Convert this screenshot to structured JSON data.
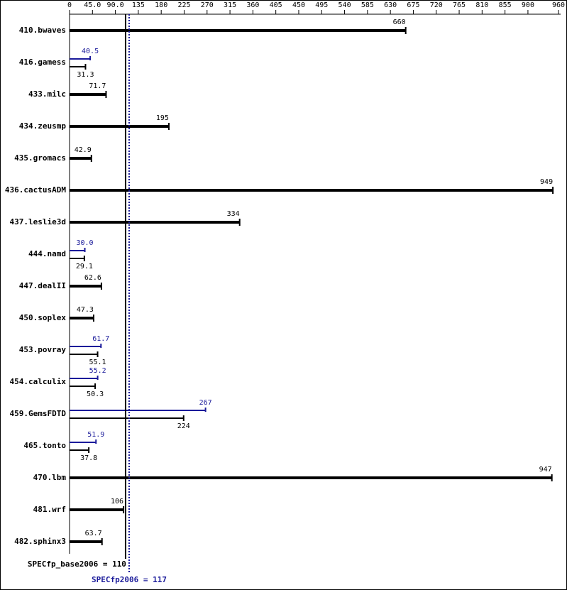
{
  "chart_data": {
    "type": "bar",
    "orientation": "horizontal",
    "categories": [
      "410.bwaves",
      "416.gamess",
      "433.milc",
      "434.zeusmp",
      "435.gromacs",
      "436.cactusADM",
      "437.leslie3d",
      "444.namd",
      "447.dealII",
      "450.soplex",
      "453.povray",
      "454.calculix",
      "459.GemsFDTD",
      "465.tonto",
      "470.lbm",
      "481.wrf",
      "482.sphinx3"
    ],
    "series": [
      {
        "color": "#000000",
        "values": [
          660,
          31.3,
          71.7,
          195,
          42.9,
          949,
          334,
          29.1,
          62.6,
          47.3,
          55.1,
          50.3,
          224,
          37.8,
          947,
          106,
          63.7
        ]
      },
      {
        "color": "#1a1a9a",
        "values": [
          null,
          40.5,
          null,
          null,
          null,
          null,
          null,
          30.0,
          null,
          null,
          61.7,
          55.2,
          267,
          51.9,
          null,
          null,
          null
        ],
        "value_labels": [
          null,
          "40.5",
          null,
          null,
          null,
          null,
          null,
          "30.0",
          null,
          null,
          "61.7",
          "55.2",
          "267",
          "51.9",
          null,
          null,
          null
        ]
      }
    ],
    "xlim": [
      0,
      960
    ],
    "xticks": [
      0,
      {
        "value": 45,
        "label": "45.0"
      },
      {
        "value": 90,
        "label": "90.0"
      },
      135,
      180,
      225,
      270,
      315,
      360,
      405,
      450,
      495,
      540,
      585,
      630,
      675,
      720,
      765,
      810,
      855,
      900,
      960
    ],
    "reference_lines": [
      {
        "label": "SPECfp_base2006 = 110",
        "value": 110,
        "color": "#000000"
      },
      {
        "label": "SPECfp2006 = 117",
        "value": 117,
        "color": "#1a1a9a"
      }
    ]
  }
}
